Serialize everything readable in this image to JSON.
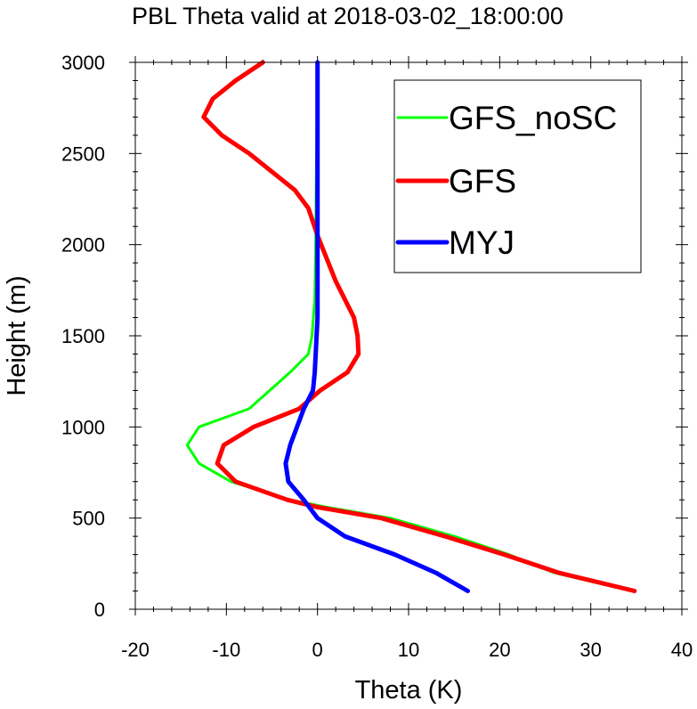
{
  "chart_data": {
    "type": "line",
    "title": "PBL Theta valid at 2018-03-02_18:00:00",
    "xlabel": "Theta (K)",
    "ylabel": "Height (m)",
    "xlim": [
      -20,
      40
    ],
    "ylim": [
      0,
      3000
    ],
    "xticks": [
      -20,
      -10,
      0,
      10,
      20,
      30,
      40
    ],
    "yticks": [
      0,
      500,
      1000,
      1500,
      2000,
      2500,
      3000
    ],
    "legend_position": "top-right",
    "grid": false,
    "series": [
      {
        "name": "GFS_noSC",
        "color": "#00ff00",
        "points": [
          [
            34.5,
            100
          ],
          [
            26,
            200
          ],
          [
            21,
            300
          ],
          [
            15,
            400
          ],
          [
            8,
            500
          ],
          [
            1,
            560
          ],
          [
            -3,
            600
          ],
          [
            -9.5,
            700
          ],
          [
            -13,
            800
          ],
          [
            -14.3,
            900
          ],
          [
            -13,
            1000
          ],
          [
            -7.5,
            1100
          ],
          [
            -3,
            1300
          ],
          [
            -1,
            1400
          ],
          [
            -0.6,
            1500
          ],
          [
            -0.3,
            1700
          ],
          [
            -0.2,
            2000
          ],
          [
            -0.1,
            2500
          ],
          [
            0,
            3000
          ]
        ]
      },
      {
        "name": "GFS",
        "color": "#ff0000",
        "points": [
          [
            34.8,
            100
          ],
          [
            26.5,
            200
          ],
          [
            20.5,
            300
          ],
          [
            14,
            400
          ],
          [
            7,
            500
          ],
          [
            0,
            560
          ],
          [
            -3.3,
            600
          ],
          [
            -9,
            700
          ],
          [
            -11,
            800
          ],
          [
            -10.3,
            900
          ],
          [
            -7,
            1000
          ],
          [
            -2,
            1100
          ],
          [
            0.3,
            1200
          ],
          [
            3.3,
            1300
          ],
          [
            4.5,
            1400
          ],
          [
            4.4,
            1500
          ],
          [
            4,
            1600
          ],
          [
            2,
            1800
          ],
          [
            0,
            2050
          ],
          [
            -1,
            2200
          ],
          [
            -2.5,
            2300
          ],
          [
            -5,
            2400
          ],
          [
            -7.5,
            2500
          ],
          [
            -10.5,
            2600
          ],
          [
            -12.5,
            2700
          ],
          [
            -11.5,
            2800
          ],
          [
            -9,
            2900
          ],
          [
            -6,
            3000
          ]
        ]
      },
      {
        "name": "MYJ",
        "color": "#0000ff",
        "points": [
          [
            16.5,
            100
          ],
          [
            13,
            200
          ],
          [
            8.5,
            300
          ],
          [
            3,
            400
          ],
          [
            0,
            500
          ],
          [
            -1.5,
            600
          ],
          [
            -3.2,
            700
          ],
          [
            -3.5,
            800
          ],
          [
            -3,
            900
          ],
          [
            -1.5,
            1100
          ],
          [
            -0.5,
            1200
          ],
          [
            -0.3,
            1300
          ],
          [
            0,
            1600
          ],
          [
            0,
            2000
          ],
          [
            0,
            2500
          ],
          [
            0,
            3000
          ]
        ]
      }
    ]
  }
}
